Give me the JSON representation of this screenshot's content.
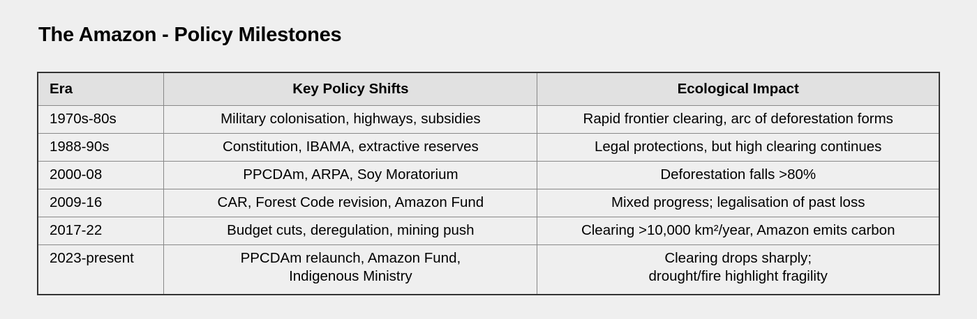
{
  "title": "The Amazon - Policy Milestones",
  "table": {
    "headers": [
      "Era",
      "Key Policy Shifts",
      "Ecological Impact"
    ],
    "rows": [
      {
        "era": "1970s-80s",
        "policy": [
          "Military colonisation, highways, subsidies"
        ],
        "impact": [
          "Rapid frontier clearing, arc of deforestation forms"
        ]
      },
      {
        "era": "1988-90s",
        "policy": [
          "Constitution, IBAMA, extractive reserves"
        ],
        "impact": [
          "Legal protections, but high clearing continues"
        ]
      },
      {
        "era": "2000-08",
        "policy": [
          "PPCDAm, ARPA, Soy Moratorium"
        ],
        "impact": [
          "Deforestation falls >80%"
        ]
      },
      {
        "era": "2009-16",
        "policy": [
          "CAR, Forest Code revision, Amazon Fund"
        ],
        "impact": [
          "Mixed progress; legalisation of past loss"
        ]
      },
      {
        "era": "2017-22",
        "policy": [
          "Budget cuts, deregulation, mining push"
        ],
        "impact": [
          "Clearing >10,000 km²/year, Amazon emits carbon"
        ]
      },
      {
        "era": "2023-present",
        "policy": [
          "PPCDAm relaunch, Amazon Fund,",
          "Indigenous Ministry"
        ],
        "impact": [
          "Clearing drops sharply;",
          "drought/fire highlight fragility"
        ]
      }
    ]
  }
}
